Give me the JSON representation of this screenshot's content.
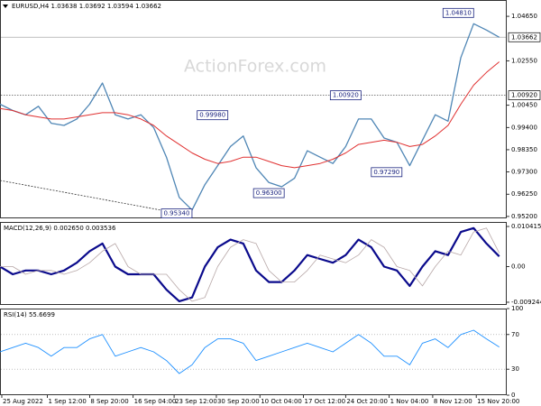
{
  "chart_data": [
    {
      "type": "line",
      "title": "EURUSD,H4  1.03638 1.03692 1.03594 1.03662",
      "watermark": "ActionForex.com",
      "xlim": [
        0,
        39.3
      ],
      "ylim": [
        0.9511,
        1.0542
      ],
      "yticks": [
        {
          "value": 1.0465,
          "label": "1.04650"
        },
        {
          "value": 1.0255,
          "label": "1.02550"
        },
        {
          "value": 1.0045,
          "label": "1.00450"
        },
        {
          "value": 0.994,
          "label": "0.99400"
        },
        {
          "value": 0.9835,
          "label": "0.98350"
        },
        {
          "value": 0.973,
          "label": "0.97300"
        },
        {
          "value": 0.9625,
          "label": "0.96250"
        },
        {
          "value": 0.952,
          "label": "0.95200"
        }
      ],
      "series": [
        {
          "name": "EURUSD",
          "color": "#4f86b5",
          "width": 1.3,
          "values": [
            1.005,
            1.002,
            1.0,
            1.004,
            0.996,
            0.995,
            0.998,
            1.005,
            1.015,
            1.0,
            0.998,
            1.0,
            0.994,
            0.98,
            0.961,
            0.955,
            0.967,
            0.976,
            0.985,
            0.99,
            0.975,
            0.968,
            0.966,
            0.97,
            0.983,
            0.98,
            0.977,
            0.985,
            0.998,
            0.998,
            0.989,
            0.987,
            0.976,
            0.988,
            1.0,
            0.997,
            1.027,
            1.043,
            1.04,
            1.0366
          ]
        },
        {
          "name": "MA",
          "color": "#e03030",
          "width": 1,
          "values": [
            1.003,
            1.002,
            1.0,
            0.999,
            0.998,
            0.998,
            0.999,
            1.0,
            1.001,
            1.001,
            1.0,
            0.998,
            0.995,
            0.99,
            0.986,
            0.982,
            0.979,
            0.977,
            0.978,
            0.98,
            0.98,
            0.978,
            0.976,
            0.975,
            0.976,
            0.977,
            0.979,
            0.982,
            0.986,
            0.987,
            0.988,
            0.987,
            0.985,
            0.986,
            0.99,
            0.995,
            1.005,
            1.014,
            1.02,
            1.025
          ]
        }
      ],
      "price_lines": [
        {
          "value": 1.03662,
          "label": "1.03662",
          "style": "solid"
        },
        {
          "value": 1.0092,
          "label": "1.00920",
          "style": "dotted"
        }
      ],
      "annotations": [
        {
          "value": 1.0481,
          "label": "1.04810",
          "x": 35.8
        },
        {
          "value": 1.0092,
          "label": "1.00920",
          "x": 27
        },
        {
          "value": 0.9998,
          "label": "0.99980",
          "x": 16.6
        },
        {
          "value": 0.9729,
          "label": "0.97290",
          "x": 30.2
        },
        {
          "value": 0.963,
          "label": "0.96300",
          "x": 21
        },
        {
          "value": 0.9534,
          "label": "0.95340",
          "x": 13.8
        }
      ],
      "trendline": {
        "x": [
          0,
          13
        ],
        "values": [
          0.969,
          0.9545
        ]
      }
    },
    {
      "type": "line",
      "title": "MACD(12,26,9) 0.002650 0.003536",
      "xlim": [
        0,
        39.3
      ],
      "ylim": [
        -0.00995,
        0.01159
      ],
      "yticks": [
        0.010415,
        {
          "value": 0,
          "label": "0.00"
        },
        -0.009244
      ],
      "series": [
        {
          "name": "MACD",
          "color": "#0a0a8c",
          "width": 2.2,
          "values": [
            0.0,
            -0.002,
            -0.001,
            -0.001,
            -0.002,
            -0.001,
            0.001,
            0.004,
            0.006,
            0.0,
            -0.002,
            -0.002,
            -0.002,
            -0.006,
            -0.009,
            -0.008,
            0.0,
            0.005,
            0.007,
            0.006,
            -0.001,
            -0.004,
            -0.004,
            -0.001,
            0.003,
            0.002,
            0.001,
            0.003,
            0.007,
            0.005,
            0.0,
            -0.001,
            -0.005,
            0.0,
            0.004,
            0.003,
            0.009,
            0.01,
            0.006,
            0.00265
          ]
        },
        {
          "name": "Signal",
          "color": "#b8a8a8",
          "width": 0.8,
          "values": [
            0.0,
            0.0,
            -0.002,
            -0.001,
            -0.001,
            -0.002,
            -0.001,
            0.001,
            0.004,
            0.006,
            0.0,
            -0.002,
            -0.002,
            -0.002,
            -0.006,
            -0.009,
            -0.008,
            0.0,
            0.005,
            0.007,
            0.006,
            -0.001,
            -0.004,
            -0.004,
            -0.001,
            0.003,
            0.002,
            0.001,
            0.003,
            0.007,
            0.005,
            0.0,
            -0.001,
            -0.005,
            0.0,
            0.004,
            0.003,
            0.009,
            0.01,
            0.003536
          ]
        }
      ]
    },
    {
      "type": "line",
      "title": "RSI(14) 55.6699",
      "xlim": [
        0,
        39.3
      ],
      "ylim": [
        0,
        100
      ],
      "yticks": [
        100,
        70,
        30,
        0
      ],
      "levels": [
        70,
        30
      ],
      "series": [
        {
          "name": "RSI",
          "color": "#1e90ff",
          "width": 0.9,
          "values": [
            50,
            55,
            60,
            55,
            45,
            55,
            55,
            65,
            70,
            45,
            50,
            55,
            50,
            40,
            25,
            35,
            55,
            65,
            65,
            60,
            40,
            45,
            50,
            55,
            60,
            55,
            50,
            60,
            70,
            60,
            45,
            45,
            35,
            60,
            65,
            55,
            70,
            75,
            65,
            55.6699
          ]
        }
      ],
      "xticks": [
        {
          "value": 0.14,
          "label": "25 Aug 2022"
        },
        {
          "value": 3.7,
          "label": "1 Sep 12:00"
        },
        {
          "value": 7,
          "label": "8 Sep 20:00"
        },
        {
          "value": 10.4,
          "label": "16 Sep 04:00"
        },
        {
          "value": 13.6,
          "label": "23 Sep 12:00"
        },
        {
          "value": 16.9,
          "label": "30 Sep 20:00"
        },
        {
          "value": 20.3,
          "label": "10 Oct 04:00"
        },
        {
          "value": 23.7,
          "label": "17 Oct 12:00"
        },
        {
          "value": 27,
          "label": "24 Oct 20:00"
        },
        {
          "value": 30.4,
          "label": "1 Nov 04:00"
        },
        {
          "value": 33.8,
          "label": "8 Nov 12:00"
        },
        {
          "value": 37.2,
          "label": "15 Nov 20:00"
        }
      ]
    }
  ]
}
